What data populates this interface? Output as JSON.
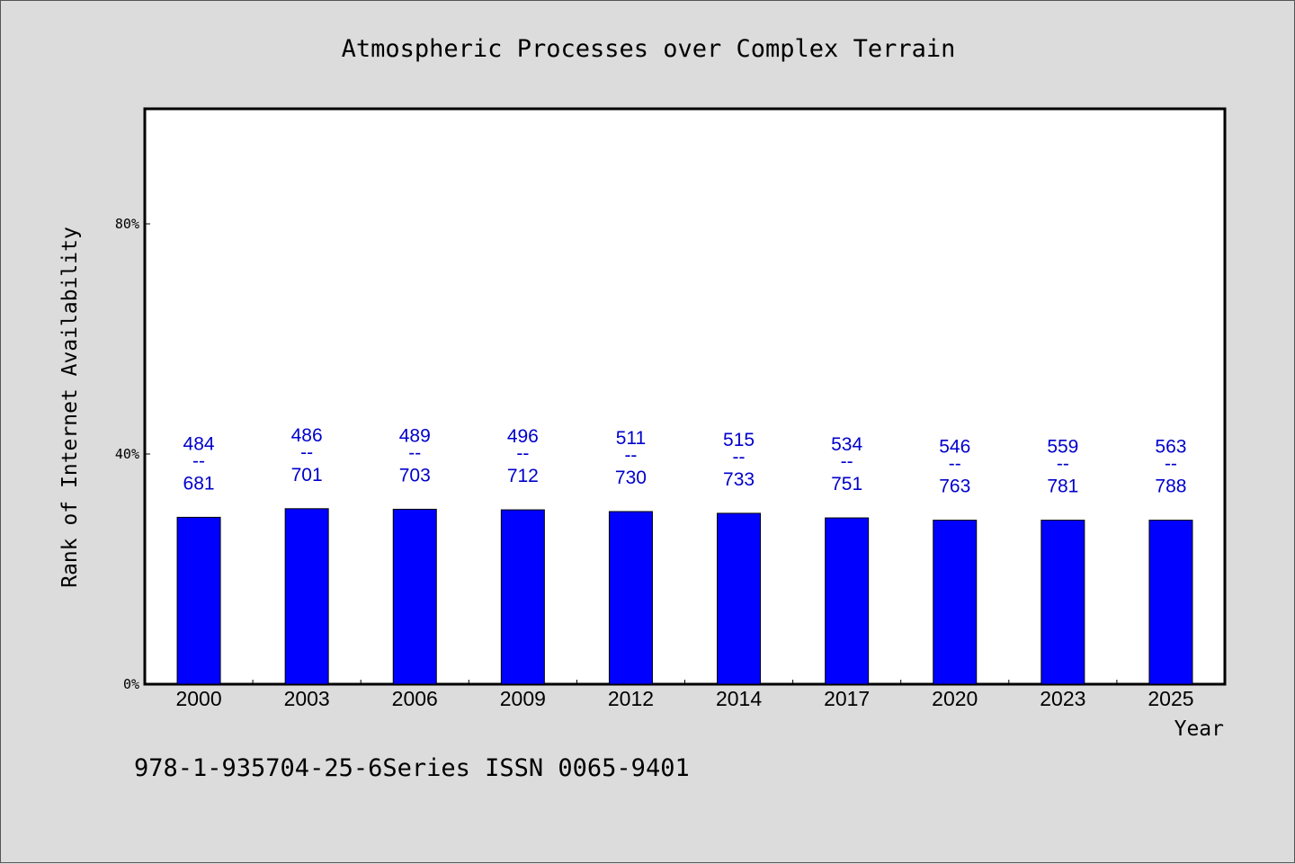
{
  "chart_data": {
    "type": "bar",
    "title": "Atmospheric Processes over Complex Terrain",
    "xlabel": "Year",
    "ylabel": "Rank of Internet Availability",
    "categories": [
      "2000",
      "2003",
      "2006",
      "2009",
      "2012",
      "2014",
      "2017",
      "2020",
      "2023",
      "2025"
    ],
    "values": [
      29.0,
      30.5,
      30.4,
      30.3,
      30.0,
      29.7,
      28.9,
      28.5,
      28.5,
      28.5
    ],
    "value_labels": [
      {
        "top": "484",
        "sep": "--",
        "bottom": "681"
      },
      {
        "top": "486",
        "sep": "--",
        "bottom": "701"
      },
      {
        "top": "489",
        "sep": "--",
        "bottom": "703"
      },
      {
        "top": "496",
        "sep": "--",
        "bottom": "712"
      },
      {
        "top": "511",
        "sep": "--",
        "bottom": "730"
      },
      {
        "top": "515",
        "sep": "--",
        "bottom": "733"
      },
      {
        "top": "534",
        "sep": "--",
        "bottom": "751"
      },
      {
        "top": "546",
        "sep": "--",
        "bottom": "763"
      },
      {
        "top": "559",
        "sep": "--",
        "bottom": "781"
      },
      {
        "top": "563",
        "sep": "--",
        "bottom": "788"
      }
    ],
    "yticks": [
      0,
      40,
      80
    ],
    "ytick_labels": [
      "0%",
      "40%",
      "80%"
    ],
    "ylim": [
      0,
      100
    ],
    "grid": false,
    "colors": {
      "bar": "#0000ff",
      "label": "#0000cc",
      "background": "#dcdcdc",
      "plot_background": "#ffffff"
    }
  },
  "footer": "978-1-935704-25-6Series ISSN 0065-9401"
}
